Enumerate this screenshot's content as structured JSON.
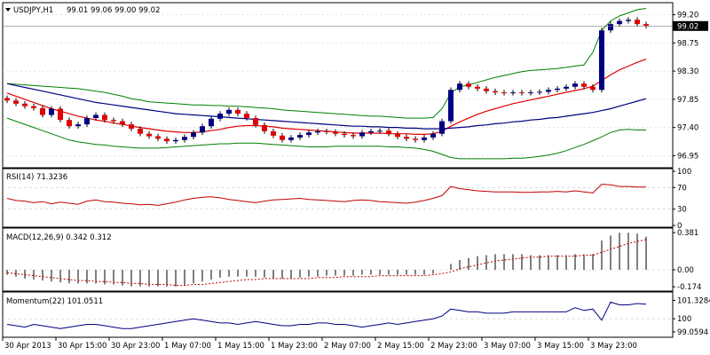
{
  "window": {
    "symbol_label": "USDJPY,H1",
    "ohlc_label": "99.01 99.06 99.00 99.02",
    "current_price_label": "99.02"
  },
  "colors": {
    "background": "#ffffff",
    "grid": "#c8c8c8",
    "bull_candle": "#000080",
    "bear_candle": "#e00000",
    "bollinger": "#008000",
    "ma_fast": "#e00000",
    "ma_slow": "#000080",
    "rsi": "#c00000",
    "macd_signal": "#c00000",
    "momentum": "#000080",
    "axis": "#000000"
  },
  "chart_data": [
    {
      "type": "candlestick",
      "panel": "price",
      "ylim": [
        96.8,
        99.35
      ],
      "y_ticks": [
        "99.20",
        "98.75",
        "98.30",
        "97.85",
        "97.40",
        "96.95"
      ],
      "y_tick_values": [
        99.2,
        98.75,
        98.3,
        97.85,
        97.4,
        96.95
      ],
      "current_price": 99.02,
      "series": [
        {
          "indicator": "close",
          "values": [
            97.83,
            97.78,
            97.74,
            97.71,
            97.6,
            97.7,
            97.52,
            97.42,
            97.45,
            97.55,
            97.6,
            97.52,
            97.5,
            97.45,
            97.38,
            97.3,
            97.26,
            97.22,
            97.18,
            97.2,
            97.25,
            97.32,
            97.42,
            97.54,
            97.62,
            97.68,
            97.62,
            97.55,
            97.44,
            97.34,
            97.27,
            97.2,
            97.24,
            97.28,
            97.32,
            97.34,
            97.33,
            97.3,
            97.28,
            97.26,
            97.32,
            97.34,
            97.35,
            97.3,
            97.25,
            97.22,
            97.2,
            97.24,
            97.3,
            97.5,
            98.0,
            98.1,
            98.05,
            98.02,
            97.98,
            97.96,
            97.95,
            97.96,
            97.95,
            97.96,
            97.97,
            98.0,
            98.02,
            98.05,
            98.1,
            98.05,
            98.0,
            98.95,
            99.05,
            99.1,
            99.12,
            99.05,
            99.02
          ]
        },
        {
          "indicator": "bollinger-upper",
          "values": [
            98.1,
            98.09,
            98.08,
            98.07,
            98.06,
            98.05,
            98.04,
            98.03,
            98.02,
            98.0,
            97.98,
            97.96,
            97.93,
            97.9,
            97.86,
            97.84,
            97.81,
            97.8,
            97.79,
            97.78,
            97.77,
            97.76,
            97.76,
            97.75,
            97.75,
            97.74,
            97.74,
            97.73,
            97.72,
            97.71,
            97.7,
            97.68,
            97.67,
            97.66,
            97.65,
            97.64,
            97.63,
            97.62,
            97.61,
            97.6,
            97.59,
            97.58,
            97.58,
            97.57,
            97.56,
            97.55,
            97.55,
            97.55,
            97.56,
            97.7,
            97.95,
            98.05,
            98.08,
            98.12,
            98.16,
            98.2,
            98.23,
            98.26,
            98.29,
            98.31,
            98.32,
            98.33,
            98.34,
            98.36,
            98.38,
            98.4,
            98.6,
            98.95,
            99.1,
            99.18,
            99.23,
            99.28,
            99.3
          ]
        },
        {
          "indicator": "bollinger-lower",
          "values": [
            97.55,
            97.5,
            97.45,
            97.4,
            97.35,
            97.3,
            97.25,
            97.2,
            97.17,
            97.15,
            97.13,
            97.12,
            97.1,
            97.09,
            97.08,
            97.07,
            97.07,
            97.07,
            97.08,
            97.09,
            97.1,
            97.11,
            97.12,
            97.13,
            97.14,
            97.14,
            97.15,
            97.15,
            97.15,
            97.14,
            97.13,
            97.12,
            97.11,
            97.1,
            97.09,
            97.09,
            97.09,
            97.1,
            97.1,
            97.1,
            97.1,
            97.1,
            97.1,
            97.09,
            97.09,
            97.08,
            97.07,
            97.05,
            97.02,
            96.97,
            96.92,
            96.9,
            96.9,
            96.9,
            96.9,
            96.9,
            96.9,
            96.91,
            96.91,
            96.92,
            96.94,
            96.96,
            96.99,
            97.03,
            97.08,
            97.13,
            97.19,
            97.25,
            97.32,
            97.36,
            97.37,
            97.36,
            97.36
          ]
        },
        {
          "indicator": "ma-fast",
          "values": [
            97.95,
            97.9,
            97.85,
            97.8,
            97.75,
            97.7,
            97.66,
            97.62,
            97.58,
            97.55,
            97.52,
            97.5,
            97.47,
            97.45,
            97.42,
            97.4,
            97.38,
            97.36,
            97.34,
            97.33,
            97.32,
            97.32,
            97.33,
            97.35,
            97.37,
            97.4,
            97.42,
            97.43,
            97.43,
            97.42,
            97.41,
            97.39,
            97.38,
            97.37,
            97.36,
            97.35,
            97.34,
            97.33,
            97.32,
            97.31,
            97.31,
            97.31,
            97.31,
            97.3,
            97.3,
            97.3,
            97.29,
            97.29,
            97.3,
            97.34,
            97.42,
            97.49,
            97.55,
            97.61,
            97.66,
            97.7,
            97.74,
            97.78,
            97.81,
            97.84,
            97.87,
            97.9,
            97.93,
            97.96,
            97.99,
            98.02,
            98.06,
            98.15,
            98.24,
            98.32,
            98.38,
            98.44,
            98.49
          ]
        },
        {
          "indicator": "ma-slow",
          "values": [
            98.1,
            98.07,
            98.04,
            98.01,
            97.98,
            97.95,
            97.92,
            97.89,
            97.86,
            97.83,
            97.8,
            97.78,
            97.76,
            97.74,
            97.72,
            97.7,
            97.68,
            97.66,
            97.64,
            97.62,
            97.61,
            97.6,
            97.59,
            97.58,
            97.57,
            97.56,
            97.55,
            97.54,
            97.53,
            97.52,
            97.51,
            97.5,
            97.49,
            97.48,
            97.47,
            97.46,
            97.45,
            97.44,
            97.43,
            97.42,
            97.42,
            97.41,
            97.41,
            97.4,
            97.4,
            97.39,
            97.39,
            97.38,
            97.38,
            97.38,
            97.39,
            97.4,
            97.41,
            97.43,
            97.44,
            97.46,
            97.47,
            97.49,
            97.5,
            97.52,
            97.53,
            97.55,
            97.56,
            97.58,
            97.6,
            97.62,
            97.64,
            97.67,
            97.7,
            97.74,
            97.78,
            97.82,
            97.86
          ]
        }
      ]
    },
    {
      "type": "line",
      "panel": "rsi",
      "label": "RSI(14) 71.3236",
      "ylim": [
        0,
        100
      ],
      "y_ticks": [
        "100",
        "70",
        "30",
        "0"
      ],
      "y_tick_values": [
        100,
        70,
        30,
        0
      ],
      "levels": [
        70,
        30
      ],
      "values": [
        50,
        46,
        45,
        42,
        44,
        40,
        43,
        41,
        39,
        45,
        47,
        44,
        43,
        41,
        40,
        38,
        39,
        37,
        40,
        43,
        47,
        50,
        52,
        53,
        51,
        48,
        46,
        44,
        42,
        45,
        47,
        48,
        49,
        50,
        48,
        47,
        46,
        45,
        44,
        46,
        47,
        46,
        44,
        43,
        42,
        41,
        43,
        46,
        50,
        55,
        72,
        68,
        66,
        64,
        63,
        62,
        62,
        62,
        61,
        61,
        62,
        62,
        63,
        62,
        64,
        62,
        60,
        76,
        75,
        72,
        72,
        71,
        71
      ]
    },
    {
      "type": "bar",
      "panel": "macd",
      "label": "MACD(12,26,9) 0.342 0.312",
      "ylim": [
        -0.2,
        0.4
      ],
      "y_ticks": [
        "0.381",
        "0.00",
        "-0.174"
      ],
      "y_tick_values": [
        0.381,
        0.0,
        -0.174
      ],
      "series": [
        {
          "name": "MACD",
          "values": [
            -0.05,
            -0.07,
            -0.09,
            -0.1,
            -0.11,
            -0.12,
            -0.13,
            -0.14,
            -0.14,
            -0.14,
            -0.14,
            -0.15,
            -0.15,
            -0.16,
            -0.17,
            -0.17,
            -0.17,
            -0.17,
            -0.17,
            -0.17,
            -0.16,
            -0.14,
            -0.12,
            -0.1,
            -0.08,
            -0.07,
            -0.07,
            -0.07,
            -0.07,
            -0.08,
            -0.09,
            -0.09,
            -0.09,
            -0.08,
            -0.07,
            -0.07,
            -0.06,
            -0.06,
            -0.06,
            -0.06,
            -0.05,
            -0.05,
            -0.05,
            -0.05,
            -0.05,
            -0.05,
            -0.05,
            -0.05,
            -0.04,
            0.0,
            0.06,
            0.1,
            0.12,
            0.14,
            0.15,
            0.16,
            0.16,
            0.16,
            0.16,
            0.15,
            0.15,
            0.15,
            0.15,
            0.15,
            0.16,
            0.16,
            0.16,
            0.3,
            0.35,
            0.38,
            0.38,
            0.37,
            0.34
          ]
        },
        {
          "name": "Signal",
          "values": [
            -0.03,
            -0.04,
            -0.05,
            -0.06,
            -0.07,
            -0.08,
            -0.09,
            -0.1,
            -0.11,
            -0.11,
            -0.12,
            -0.12,
            -0.13,
            -0.13,
            -0.14,
            -0.14,
            -0.15,
            -0.15,
            -0.15,
            -0.16,
            -0.16,
            -0.15,
            -0.15,
            -0.14,
            -0.13,
            -0.12,
            -0.11,
            -0.1,
            -0.1,
            -0.09,
            -0.09,
            -0.09,
            -0.09,
            -0.09,
            -0.09,
            -0.08,
            -0.08,
            -0.08,
            -0.07,
            -0.07,
            -0.07,
            -0.07,
            -0.06,
            -0.06,
            -0.06,
            -0.06,
            -0.06,
            -0.06,
            -0.05,
            -0.04,
            -0.02,
            0.01,
            0.03,
            0.05,
            0.07,
            0.09,
            0.1,
            0.11,
            0.12,
            0.13,
            0.13,
            0.14,
            0.14,
            0.14,
            0.14,
            0.15,
            0.15,
            0.18,
            0.21,
            0.24,
            0.27,
            0.29,
            0.31
          ]
        }
      ]
    },
    {
      "type": "line",
      "panel": "momentum",
      "label": "Momentum(22) 101.0511",
      "ylim": [
        98.8,
        101.8
      ],
      "y_ticks": [
        "101.3284",
        "100",
        "99.0594"
      ],
      "y_tick_values": [
        101.3284,
        100,
        99.0594
      ],
      "level": 100,
      "values": [
        99.6,
        99.5,
        99.4,
        99.6,
        99.5,
        99.4,
        99.3,
        99.4,
        99.5,
        99.6,
        99.6,
        99.5,
        99.4,
        99.3,
        99.3,
        99.4,
        99.5,
        99.6,
        99.7,
        99.8,
        99.9,
        100.0,
        99.9,
        99.8,
        99.7,
        99.7,
        99.6,
        99.7,
        99.8,
        99.7,
        99.6,
        99.5,
        99.5,
        99.6,
        99.6,
        99.7,
        99.7,
        99.6,
        99.6,
        99.5,
        99.4,
        99.5,
        99.6,
        99.7,
        99.6,
        99.7,
        99.8,
        99.9,
        100.0,
        100.2,
        100.7,
        100.6,
        100.5,
        100.5,
        100.4,
        100.4,
        100.4,
        100.5,
        100.5,
        100.5,
        100.5,
        100.5,
        100.5,
        100.5,
        100.8,
        100.6,
        100.7,
        99.9,
        101.2,
        101.0,
        101.0,
        101.1,
        101.05
      ]
    }
  ],
  "time_axis": {
    "labels": [
      "30 Apr 2013",
      "30 Apr 15:00",
      "30 Apr 23:00",
      "1 May 07:00",
      "1 May 15:00",
      "1 May 23:00",
      "2 May 07:00",
      "2 May 15:00",
      "2 May 23:00",
      "3 May 07:00",
      "3 May 15:00",
      "3 May 23:00"
    ],
    "label_indices": [
      0,
      6,
      12,
      18,
      24,
      30,
      36,
      42,
      48,
      54,
      60,
      66
    ]
  }
}
